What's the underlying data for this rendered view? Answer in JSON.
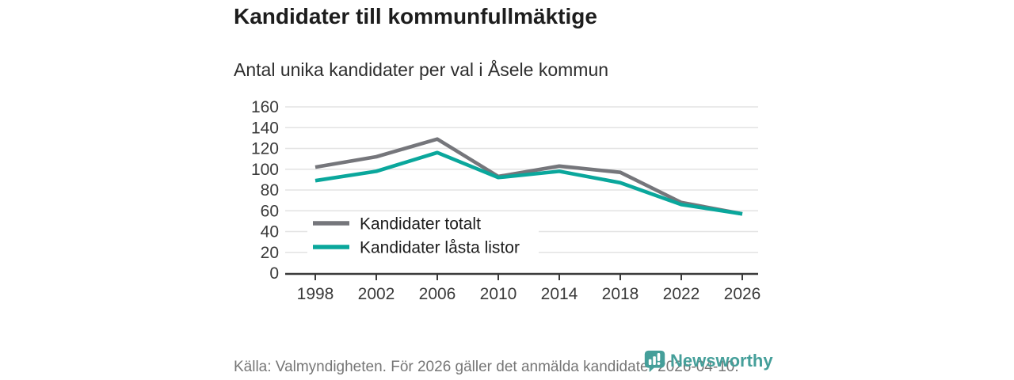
{
  "header": {
    "title": "Kandidater till kommunfullmäktige",
    "subtitle": "Antal unika kandidater per val i Åsele kommun"
  },
  "chart_data": {
    "type": "line",
    "x": [
      1998,
      2002,
      2006,
      2010,
      2014,
      2018,
      2022,
      2026
    ],
    "series": [
      {
        "name": "Kandidater totalt",
        "color": "#75767b",
        "values": [
          102,
          112,
          129,
          93,
          103,
          97,
          68,
          57
        ]
      },
      {
        "name": "Kandidater låsta listor",
        "color": "#0aa79c",
        "values": [
          89,
          98,
          116,
          92,
          98,
          87,
          66,
          57
        ]
      }
    ],
    "title": "",
    "xlabel": "",
    "ylabel": "",
    "ylim": [
      0,
      160
    ],
    "yticks": [
      0,
      20,
      40,
      60,
      80,
      100,
      120,
      140,
      160
    ],
    "grid": true,
    "legend_position": "inside-lower-left",
    "gridline_color": "#e3e3e3",
    "axis_color": "#3a3a3a",
    "tick_label_color": "#3a3a3a"
  },
  "footer": {
    "source": "Källa: Valmyndigheten. För 2026 gäller det anmälda kandidater 2026-04-10."
  },
  "branding": {
    "logo_text": "Newsworthy",
    "logo_color": "#459f9a",
    "icon": "newsworthy-chart-bubble-icon"
  }
}
